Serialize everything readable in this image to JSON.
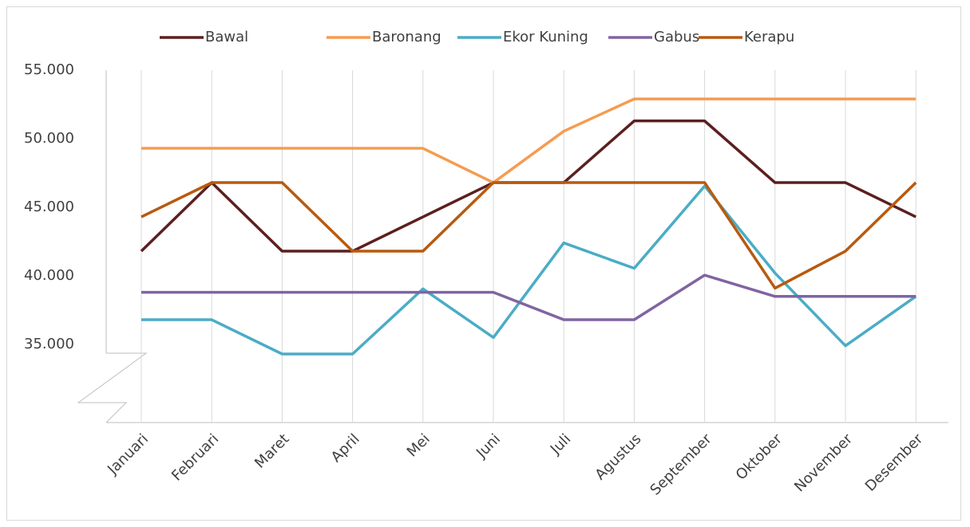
{
  "chart_data": {
    "type": "line",
    "categories": [
      "Januari",
      "Februari",
      "Maret",
      "April",
      "Mei",
      "Juni",
      "Juli",
      "Agustus",
      "September",
      "Oktober",
      "November",
      "Desember"
    ],
    "series": [
      {
        "name": "Bawal",
        "color": "#5c1f1f",
        "values": [
          42500,
          47500,
          42500,
          42500,
          45000,
          47500,
          47500,
          52000,
          52000,
          47500,
          47500,
          45000
        ]
      },
      {
        "name": "Baronang",
        "color": "#f59c50",
        "values": [
          50000,
          50000,
          50000,
          50000,
          50000,
          47500,
          51250,
          53600,
          53600,
          53600,
          53600,
          53600
        ]
      },
      {
        "name": "Ekor Kuning",
        "color": "#4bacc6",
        "values": [
          37500,
          37500,
          35000,
          35000,
          39750,
          36200,
          43100,
          41250,
          47250,
          40900,
          35600,
          39200
        ]
      },
      {
        "name": "Gabus",
        "color": "#8064a2",
        "values": [
          39500,
          39500,
          39500,
          39500,
          39500,
          39500,
          37500,
          37500,
          40750,
          39200,
          39200,
          39200
        ]
      },
      {
        "name": "Kerapu",
        "color": "#b85a0f",
        "values": [
          45000,
          47500,
          47500,
          42500,
          42500,
          47500,
          47500,
          47500,
          47500,
          39800,
          42500,
          47500
        ]
      }
    ],
    "ylim": [
      30000,
      55700
    ],
    "yticks": [
      {
        "value": 35000,
        "label": "35.000"
      },
      {
        "value": 40000,
        "label": "40.000"
      },
      {
        "value": 45000,
        "label": "45.000"
      },
      {
        "value": 50000,
        "label": "50.000"
      },
      {
        "value": 55000,
        "label": "55.000"
      }
    ],
    "grid": true,
    "legend": "top"
  }
}
